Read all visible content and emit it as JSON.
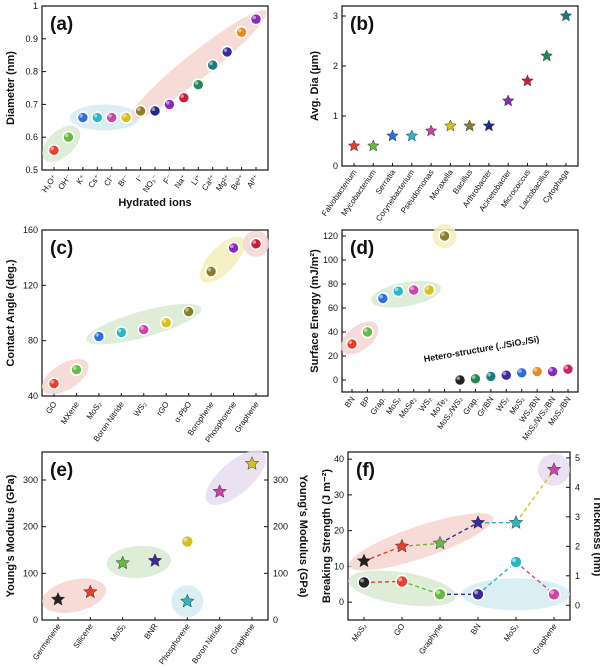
{
  "chart_data": [
    {
      "panel": "(a)",
      "type": "scatter",
      "xlabel": "Hydrated ions",
      "ylabel": "Diameter (nm)",
      "ylim": [
        0.5,
        1.0
      ],
      "yticks": [
        0.5,
        0.6,
        0.7,
        0.8,
        0.9,
        1.0
      ],
      "categories": [
        "H₃O⁺",
        "OH⁻",
        "K⁺",
        "Cs⁺",
        "Cl⁻",
        "Br⁻",
        "I⁻",
        "NO₃⁻",
        "F⁻",
        "Na⁺",
        "Li⁺",
        "Ca²⁺",
        "Mg²⁺",
        "Be²⁺",
        "Al³⁺"
      ],
      "values": [
        0.56,
        0.6,
        0.66,
        0.66,
        0.66,
        0.66,
        0.68,
        0.68,
        0.7,
        0.72,
        0.76,
        0.82,
        0.86,
        0.92,
        0.96
      ],
      "colors": [
        "#e8402a",
        "#66bb44",
        "#2a6fdb",
        "#27b8c8",
        "#cc44aa",
        "#d4c21c",
        "#8a7d2a",
        "#222a8c",
        "#8a2ab8",
        "#c81e3c",
        "#22885a",
        "#1f7a80",
        "#3a2a9a",
        "#e88a1c",
        "#8a2ab8"
      ],
      "groups": [
        {
          "color": "#d7ead0",
          "from": 0,
          "to": 1
        },
        {
          "color": "#d3ecf2",
          "from": 2,
          "to": 5
        },
        {
          "color": "#f5d5d0",
          "from": 6,
          "to": 14
        }
      ]
    },
    {
      "panel": "(b)",
      "type": "scatter",
      "ylabel": "Avg. Dia (µm)",
      "ylim": [
        0,
        3.2
      ],
      "yticks": [
        0,
        1,
        2,
        3
      ],
      "categories": [
        "Falvobacterium",
        "Mycobacterium",
        "Serratia",
        "Corynebacterium",
        "Pseudomonas",
        "Moraxella",
        "Bacillus",
        "Arthrobacter",
        "Acinetobacter",
        "Micrococcus",
        "Lactobacillus",
        "Cytophaga"
      ],
      "values": [
        0.4,
        0.4,
        0.6,
        0.6,
        0.7,
        0.8,
        0.8,
        0.8,
        1.3,
        1.7,
        2.2,
        3.0
      ],
      "colors": [
        "#e8402a",
        "#66bb44",
        "#2a6fdb",
        "#27b8c8",
        "#cc44aa",
        "#d4c21c",
        "#8a7d2a",
        "#222a8c",
        "#8a2ab8",
        "#c81e3c",
        "#22885a",
        "#1f7a80"
      ]
    },
    {
      "panel": "(c)",
      "type": "scatter",
      "ylabel": "Contact Angle (deg.)",
      "ylim": [
        40,
        160
      ],
      "yticks": [
        40,
        80,
        120,
        160
      ],
      "categories": [
        "GO",
        "MXene",
        "MoS₂",
        "Boron Nitride",
        "WS₂",
        "rGO",
        "α-PbO",
        "Borophene",
        "Phosphorene",
        "Graphene"
      ],
      "values": [
        49,
        59,
        83,
        86,
        88,
        93,
        101,
        130,
        147,
        150
      ],
      "colors": [
        "#e8402a",
        "#66bb44",
        "#2a6fdb",
        "#27b8c8",
        "#cc44aa",
        "#d4c21c",
        "#8a7d2a",
        "#8a7d2a",
        "#8a2ab8",
        "#c81e3c"
      ],
      "groups": [
        {
          "color": "#f5d5d0",
          "from": 0,
          "to": 1
        },
        {
          "color": "#d7ead0",
          "from": 2,
          "to": 6
        },
        {
          "color": "#f5efb8",
          "from": 7,
          "to": 8
        },
        {
          "color": "#f5d5d0",
          "from": 9,
          "to": 9
        }
      ]
    },
    {
      "panel": "(d)",
      "type": "scatter",
      "ylabel": "Surface Energy (mJ/m²)",
      "ylim": [
        -10,
        125
      ],
      "yticks": [
        0,
        20,
        40,
        60,
        80,
        100,
        120
      ],
      "annotation": "Hetero-structure (../SiO₂/Si)",
      "categories": [
        "BN",
        "BP",
        "Grap.",
        "MoS₂",
        "MoSe₂",
        "WS₂",
        "MoTe₂",
        "MoS₂/WS₂",
        "Grap.",
        "Gr/BN",
        "WS₂",
        "MoS₂",
        "WS₂/BN",
        "MoS₂/WS₂/BN",
        "MoS₂/BN"
      ],
      "values": [
        30,
        40,
        68,
        74,
        75,
        75,
        120,
        0,
        1,
        3,
        4,
        6,
        7,
        7,
        9
      ],
      "colors": [
        "#e8402a",
        "#66bb44",
        "#2a6fdb",
        "#27b8c8",
        "#cc44aa",
        "#d4c21c",
        "#8a7d2a",
        "#222222",
        "#22885a",
        "#1f7a80",
        "#3a2a9a",
        "#2a6fdb",
        "#e88a1c",
        "#8a2ab8",
        "#cc2266"
      ],
      "groups": [
        {
          "color": "#f5d5d0",
          "from": 0,
          "to": 1
        },
        {
          "color": "#d7ead0",
          "from": 2,
          "to": 5
        },
        {
          "color": "#f5efb8",
          "from": 6,
          "to": 6
        }
      ]
    },
    {
      "panel": "(e)",
      "type": "scatter",
      "ylabel": "Young's Modulus (GPa)",
      "y2label": "Young's Modulus (GPa)",
      "ylim": [
        0,
        360
      ],
      "yticks": [
        0,
        100,
        200,
        300
      ],
      "categories": [
        "Germenene",
        "Silicene",
        "MoS₂",
        "BNR",
        "Phosphorene",
        "Boron Nitride",
        "Graphene"
      ],
      "series": [
        {
          "name": "star",
          "values": [
            44,
            60,
            122,
            127,
            40,
            275,
            335
          ],
          "colors": [
            "#222222",
            "#e8402a",
            "#66bb44",
            "#3a2a9a",
            "#27b8c8",
            "#cc44aa",
            "#d4c21c"
          ]
        },
        {
          "name": "circle",
          "values": [
            null,
            null,
            null,
            null,
            168,
            null,
            null
          ],
          "colors": [
            "#d4c21c"
          ]
        }
      ],
      "groups": [
        {
          "color": "#f5d5d0",
          "from": 0,
          "to": 1
        },
        {
          "color": "#d7ead0",
          "from": 2,
          "to": 3
        },
        {
          "color": "#d3ecf2",
          "from": 4,
          "to": 4
        },
        {
          "color": "#e6dcf0",
          "from": 5,
          "to": 6
        }
      ]
    },
    {
      "panel": "(f)",
      "type": "line",
      "ylabel": "Breaking Strength (J m⁻²)",
      "y2label": "Thickness (nm)",
      "ylim": [
        -5,
        42
      ],
      "yticks": [
        0,
        10,
        20,
        30,
        40
      ],
      "y2lim": [
        -0.5,
        5.2
      ],
      "y2ticks": [
        0,
        1,
        2,
        3,
        4,
        5
      ],
      "categories": [
        "MoS₂",
        "GO",
        "Graphyne",
        "BN",
        "MoS₂",
        "Graphene"
      ],
      "series": [
        {
          "name": "Thickness (nm)",
          "marker": "star",
          "values": [
            1.5,
            2.0,
            2.1,
            2.8,
            2.8,
            4.6
          ],
          "colors": [
            "#222222",
            "#e8402a",
            "#66bb44",
            "#3a2a9a",
            "#27b8c8",
            "#cc44aa"
          ],
          "line_colors": [
            "#e8402a",
            "#66bb44",
            "#3a2a9a",
            "#27b8c8",
            "#d4c21c"
          ]
        },
        {
          "name": "Breaking Strength (J m⁻²)",
          "marker": "circle",
          "values": [
            5.5,
            5.8,
            2.2,
            2.2,
            11.2,
            2.2
          ],
          "colors": [
            "#222222",
            "#e8402a",
            "#66bb44",
            "#3a2a9a",
            "#27b8c8",
            "#cc44aa"
          ],
          "line_colors": [
            "#e8402a",
            "#66bb44",
            "#3a2a9a",
            "#27b8c8",
            "#cc44aa"
          ]
        }
      ],
      "groups": [
        {
          "color": "#f5d5d0",
          "from": 0,
          "to": 3
        },
        {
          "color": "#e6dcf0",
          "from": 5,
          "to": 5
        },
        {
          "color": "#d7ead0",
          "from": 0,
          "to": 2
        },
        {
          "color": "#d3ecf2",
          "from": 3,
          "to": 5
        }
      ]
    }
  ]
}
